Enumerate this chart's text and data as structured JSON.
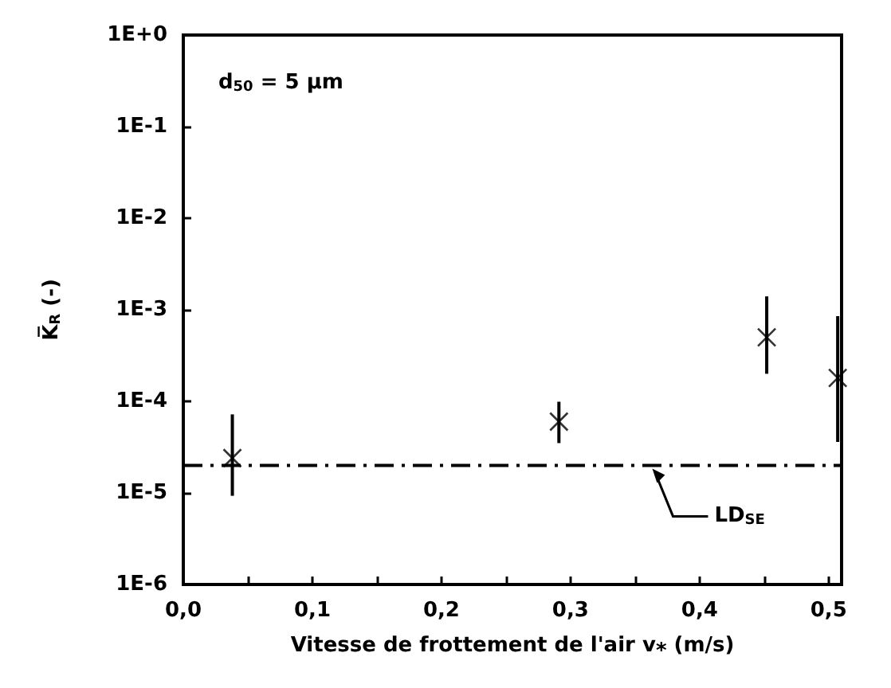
{
  "chart_data": {
    "type": "scatter",
    "xlabel": "Vitesse de frottement de l'air v⁎ (m/s)",
    "ylabel": "K̅$_{R}$ (-)",
    "x": [
      0.038,
      0.291,
      0.452,
      0.507
    ],
    "values": [
      2.4e-05,
      6e-05,
      0.0005,
      0.00018
    ],
    "errors": [
      [
        9.3e-06,
        7.2e-05
      ],
      [
        3.5e-05,
        9.9e-05
      ],
      [
        0.0002,
        0.0014
      ],
      [
        3.6e-05,
        0.00085
      ]
    ],
    "color": "#000000",
    "marker": "cross",
    "log": "y",
    "grid": false,
    "xlim": [
      0,
      0.51
    ],
    "xticks": [
      {
        "value": 0,
        "label": "0,0"
      },
      {
        "value": 0.05,
        "label": null
      },
      {
        "value": 0.1,
        "label": "0,1"
      },
      {
        "value": 0.15,
        "label": null
      },
      {
        "value": 0.2,
        "label": "0,2"
      },
      {
        "value": 0.25,
        "label": null
      },
      {
        "value": 0.3,
        "label": "0,3"
      },
      {
        "value": 0.35,
        "label": null
      },
      {
        "value": 0.4,
        "label": "0,4"
      },
      {
        "value": 0.45,
        "label": null
      },
      {
        "value": 0.5,
        "label": "0,5"
      }
    ],
    "ylim": [
      1e-06,
      1
    ],
    "yticks": [
      {
        "value": 1e-06,
        "label": "1E-6"
      },
      {
        "value": 1e-05,
        "label": "1E-5"
      },
      {
        "value": 0.0001,
        "label": "1E-4"
      },
      {
        "value": 0.001,
        "label": "1E-3"
      },
      {
        "value": 0.01,
        "label": "1E-2"
      },
      {
        "value": 0.1,
        "label": "1E-1"
      },
      {
        "value": 1,
        "label": "1E+0"
      }
    ],
    "ref_lines": [
      {
        "axis": "y",
        "value": 2e-05,
        "label": "LD$_{SE}$",
        "line_style": "dashdot",
        "color": "#000000"
      }
    ],
    "annotations": [
      "d$_{50}$ = 5 µm"
    ]
  }
}
